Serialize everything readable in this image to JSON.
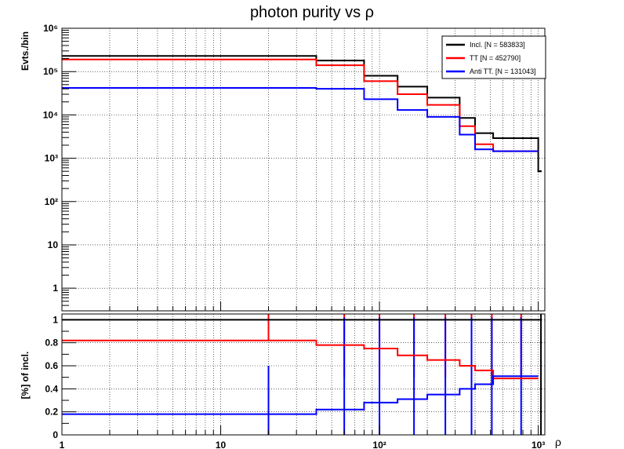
{
  "title": "photon purity vs ρ",
  "colors": {
    "incl": "#000000",
    "tt": "#ff0000",
    "anti": "#0000ff",
    "grid": "#000000"
  },
  "chart_data": [
    {
      "type": "line",
      "title": "photon purity vs ρ",
      "xlabel": "ρ",
      "ylabel": "Evts./bin",
      "xscale": "log",
      "yscale": "log",
      "xlim": [
        1,
        1100
      ],
      "ylim": [
        0.3,
        1000000
      ],
      "grid": true,
      "legend_position": "top-right",
      "x_tick_labels": [
        "1",
        "10",
        "10²",
        "10³"
      ],
      "y_tick_labels": [
        "1",
        "10",
        "10²",
        "10³",
        "10⁴",
        "10⁵",
        "10⁶"
      ],
      "bin_edges": [
        1,
        40,
        80,
        130,
        200,
        320,
        400,
        520,
        1000,
        1050
      ],
      "series": [
        {
          "name": "Incl. [N = 583833]",
          "color": "#000000",
          "values": [
            230000,
            180000,
            80000,
            45000,
            25000,
            8500,
            3800,
            2900,
            500
          ]
        },
        {
          "name": "TT [N = 452790]",
          "color": "#ff0000",
          "values": [
            190000,
            140000,
            60000,
            30000,
            17000,
            5500,
            2100,
            1450,
            null
          ]
        },
        {
          "name": "Anti TT. [N = 131043]",
          "color": "#0000ff",
          "values": [
            42000,
            40000,
            23000,
            13000,
            9000,
            3500,
            1600,
            1450,
            null
          ]
        }
      ]
    },
    {
      "type": "line",
      "xlabel": "ρ",
      "ylabel": "[%] of incl.",
      "xscale": "log",
      "xlim": [
        1,
        1100
      ],
      "ylim": [
        0,
        1.05
      ],
      "grid": true,
      "x_tick_labels": [
        "1",
        "10",
        "10²",
        "10³"
      ],
      "y_tick_labels": [
        "0",
        "0.2",
        "0.4",
        "0.6",
        "0.8",
        "1"
      ],
      "bin_edges": [
        1,
        40,
        80,
        130,
        200,
        320,
        400,
        520,
        1000,
        1050
      ],
      "error_bar_x": [
        20,
        60,
        100,
        165,
        260,
        380,
        510,
        780
      ],
      "series": [
        {
          "name": "Incl. [N = 583833]",
          "color": "#000000",
          "values": [
            1,
            1,
            1,
            1,
            1,
            1,
            1,
            1,
            1
          ]
        },
        {
          "name": "TT [N = 452790]",
          "color": "#ff0000",
          "values": [
            0.82,
            0.78,
            0.75,
            0.69,
            0.65,
            0.6,
            0.56,
            0.49,
            null
          ]
        },
        {
          "name": "Anti TT. [N = 131043]",
          "color": "#0000ff",
          "values": [
            0.18,
            0.22,
            0.28,
            0.31,
            0.35,
            0.4,
            0.44,
            0.51,
            null
          ]
        }
      ]
    }
  ]
}
